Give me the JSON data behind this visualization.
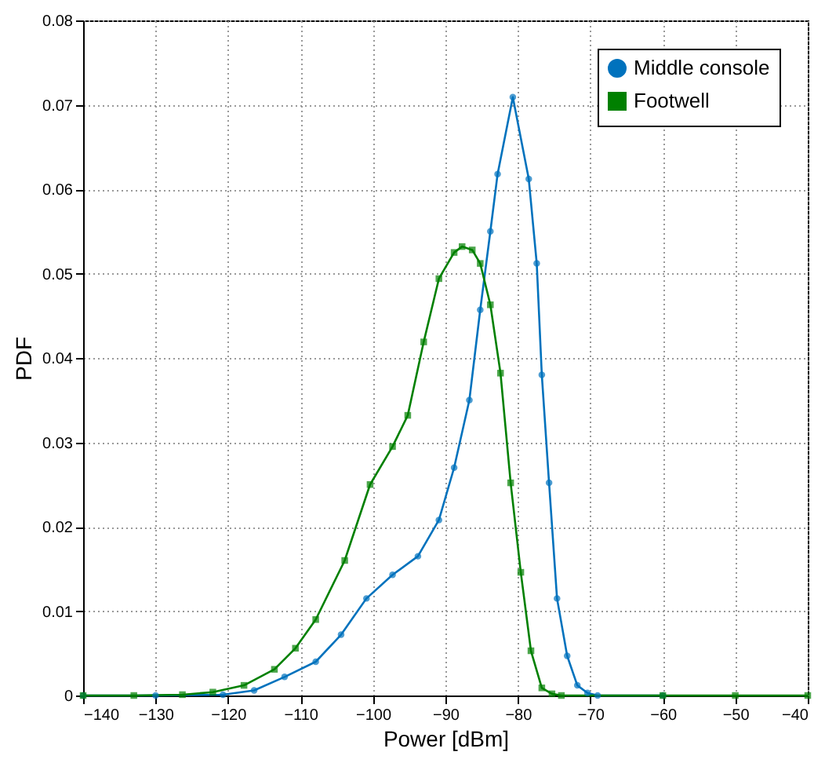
{
  "chart_data": {
    "type": "line",
    "xlabel": "Power [dBm]",
    "ylabel": "PDF",
    "xlim": [
      -140,
      -40
    ],
    "xticks": [
      -140,
      -130,
      -120,
      -110,
      -100,
      -90,
      -80,
      -70,
      -60,
      -50,
      -40
    ],
    "ylim": [
      0,
      0.08
    ],
    "yticks": [
      0,
      0.01,
      0.02,
      0.03,
      0.04,
      0.05,
      0.06,
      0.07,
      0.08
    ],
    "grid": true,
    "legend": "top right",
    "line_style": "solid",
    "series": [
      {
        "name": "Middle console",
        "color": "#0072bd",
        "marker": "circle",
        "x": [
          -140,
          -130,
          -120.7,
          -116.4,
          -112.2,
          -107.9,
          -104.4,
          -100.9,
          -97.3,
          -93.8,
          -90.9,
          -88.8,
          -86.7,
          -85.2,
          -83.8,
          -82.8,
          -80.7,
          -78.5,
          -77.4,
          -76.7,
          -75.7,
          -74.6,
          -73.2,
          -71.8,
          -70.4,
          -69,
          -60
        ],
        "values": [
          0,
          0,
          0.0001,
          0.0006,
          0.0022,
          0.004,
          0.0072,
          0.0115,
          0.0143,
          0.0165,
          0.0208,
          0.027,
          0.035,
          0.0457,
          0.055,
          0.0618,
          0.0709,
          0.0612,
          0.0512,
          0.038,
          0.0252,
          0.0115,
          0.0047,
          0.0012,
          0.0003,
          0,
          0
        ]
      },
      {
        "name": "Footwell",
        "color": "#008000",
        "marker": "square",
        "x": [
          -140,
          -133,
          -126.3,
          -122.1,
          -117.8,
          -113.6,
          -110.7,
          -107.9,
          -103.9,
          -100.4,
          -97.3,
          -95.2,
          -93.0,
          -90.9,
          -88.8,
          -87.7,
          -86.3,
          -85.2,
          -83.8,
          -82.4,
          -81.0,
          -79.6,
          -78.2,
          -76.7,
          -75.3,
          -74,
          -60,
          -50,
          -40
        ],
        "values": [
          0,
          0,
          0.0001,
          0.0004,
          0.0012,
          0.0031,
          0.0056,
          0.009,
          0.016,
          0.025,
          0.0295,
          0.0332,
          0.0419,
          0.0494,
          0.0525,
          0.0532,
          0.0528,
          0.0512,
          0.0463,
          0.0382,
          0.0252,
          0.0146,
          0.0053,
          0.0009,
          0.0002,
          0,
          0,
          0,
          0
        ]
      }
    ]
  }
}
